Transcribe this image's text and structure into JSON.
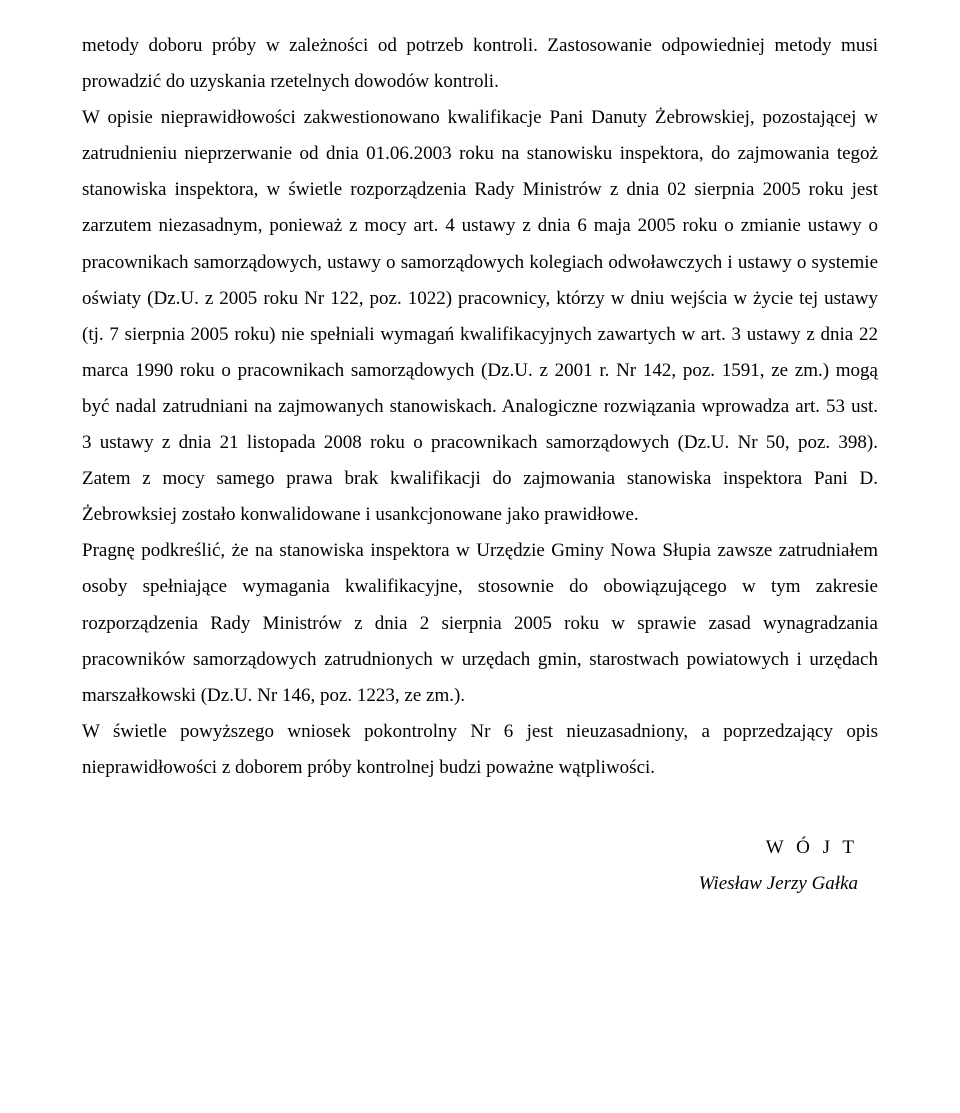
{
  "document": {
    "para1": "metody doboru próby w zależności od potrzeb kontroli. Zastosowanie odpowiedniej metody musi prowadzić do uzyskania rzetelnych dowodów kontroli.",
    "para2": "W opisie nieprawidłowości zakwestionowano kwalifikacje Pani Danuty Żebrowskiej, pozostającej w zatrudnieniu nieprzerwanie od dnia 01.06.2003 roku na stanowisku inspektora, do zajmowania tegoż stanowiska inspektora, w świetle rozporządzenia Rady Ministrów z dnia 02 sierpnia 2005 roku jest zarzutem niezasadnym, ponieważ z mocy art. 4 ustawy z dnia 6 maja 2005 roku o zmianie ustawy o pracownikach samorządowych, ustawy o samorządowych kolegiach odwoławczych i ustawy o systemie oświaty (Dz.U. z 2005 roku Nr 122, poz. 1022) pracownicy, którzy w dniu wejścia w życie tej ustawy (tj. 7 sierpnia 2005 roku) nie spełniali wymagań kwalifikacyjnych zawartych w art. 3 ustawy z dnia 22 marca 1990 roku o pracownikach samorządowych (Dz.U. z 2001 r. Nr 142, poz. 1591, ze zm.) mogą być nadal zatrudniani na zajmowanych stanowiskach. Analogiczne rozwiązania wprowadza art. 53 ust. 3 ustawy z dnia 21 listopada 2008 roku o pracownikach samorządowych (Dz.U. Nr 50, poz. 398). Zatem z mocy samego prawa brak kwalifikacji do zajmowania stanowiska inspektora Pani D. Żebrowksiej zostało konwalidowane i usankcjonowane jako prawidłowe.",
    "para3": "Pragnę podkreślić, że na stanowiska inspektora w Urzędzie Gminy Nowa Słupia zawsze zatrudniałem osoby spełniające wymagania kwalifikacyjne, stosownie do obowiązującego w tym zakresie rozporządzenia Rady Ministrów z dnia 2 sierpnia 2005 roku w sprawie zasad wynagradzania pracowników samorządowych zatrudnionych w urzędach gmin, starostwach powiatowych i urzędach marszałkowski (Dz.U. Nr 146, poz. 1223, ze zm.).",
    "para4": "W świetle powyższego wniosek pokontrolny Nr 6 jest nieuzasadniony, a poprzedzający opis nieprawidłowości z doborem próby kontrolnej budzi poważne wątpliwości.",
    "signature_title": "W Ó J T",
    "signature_name": "Wiesław Jerzy Gałka"
  }
}
